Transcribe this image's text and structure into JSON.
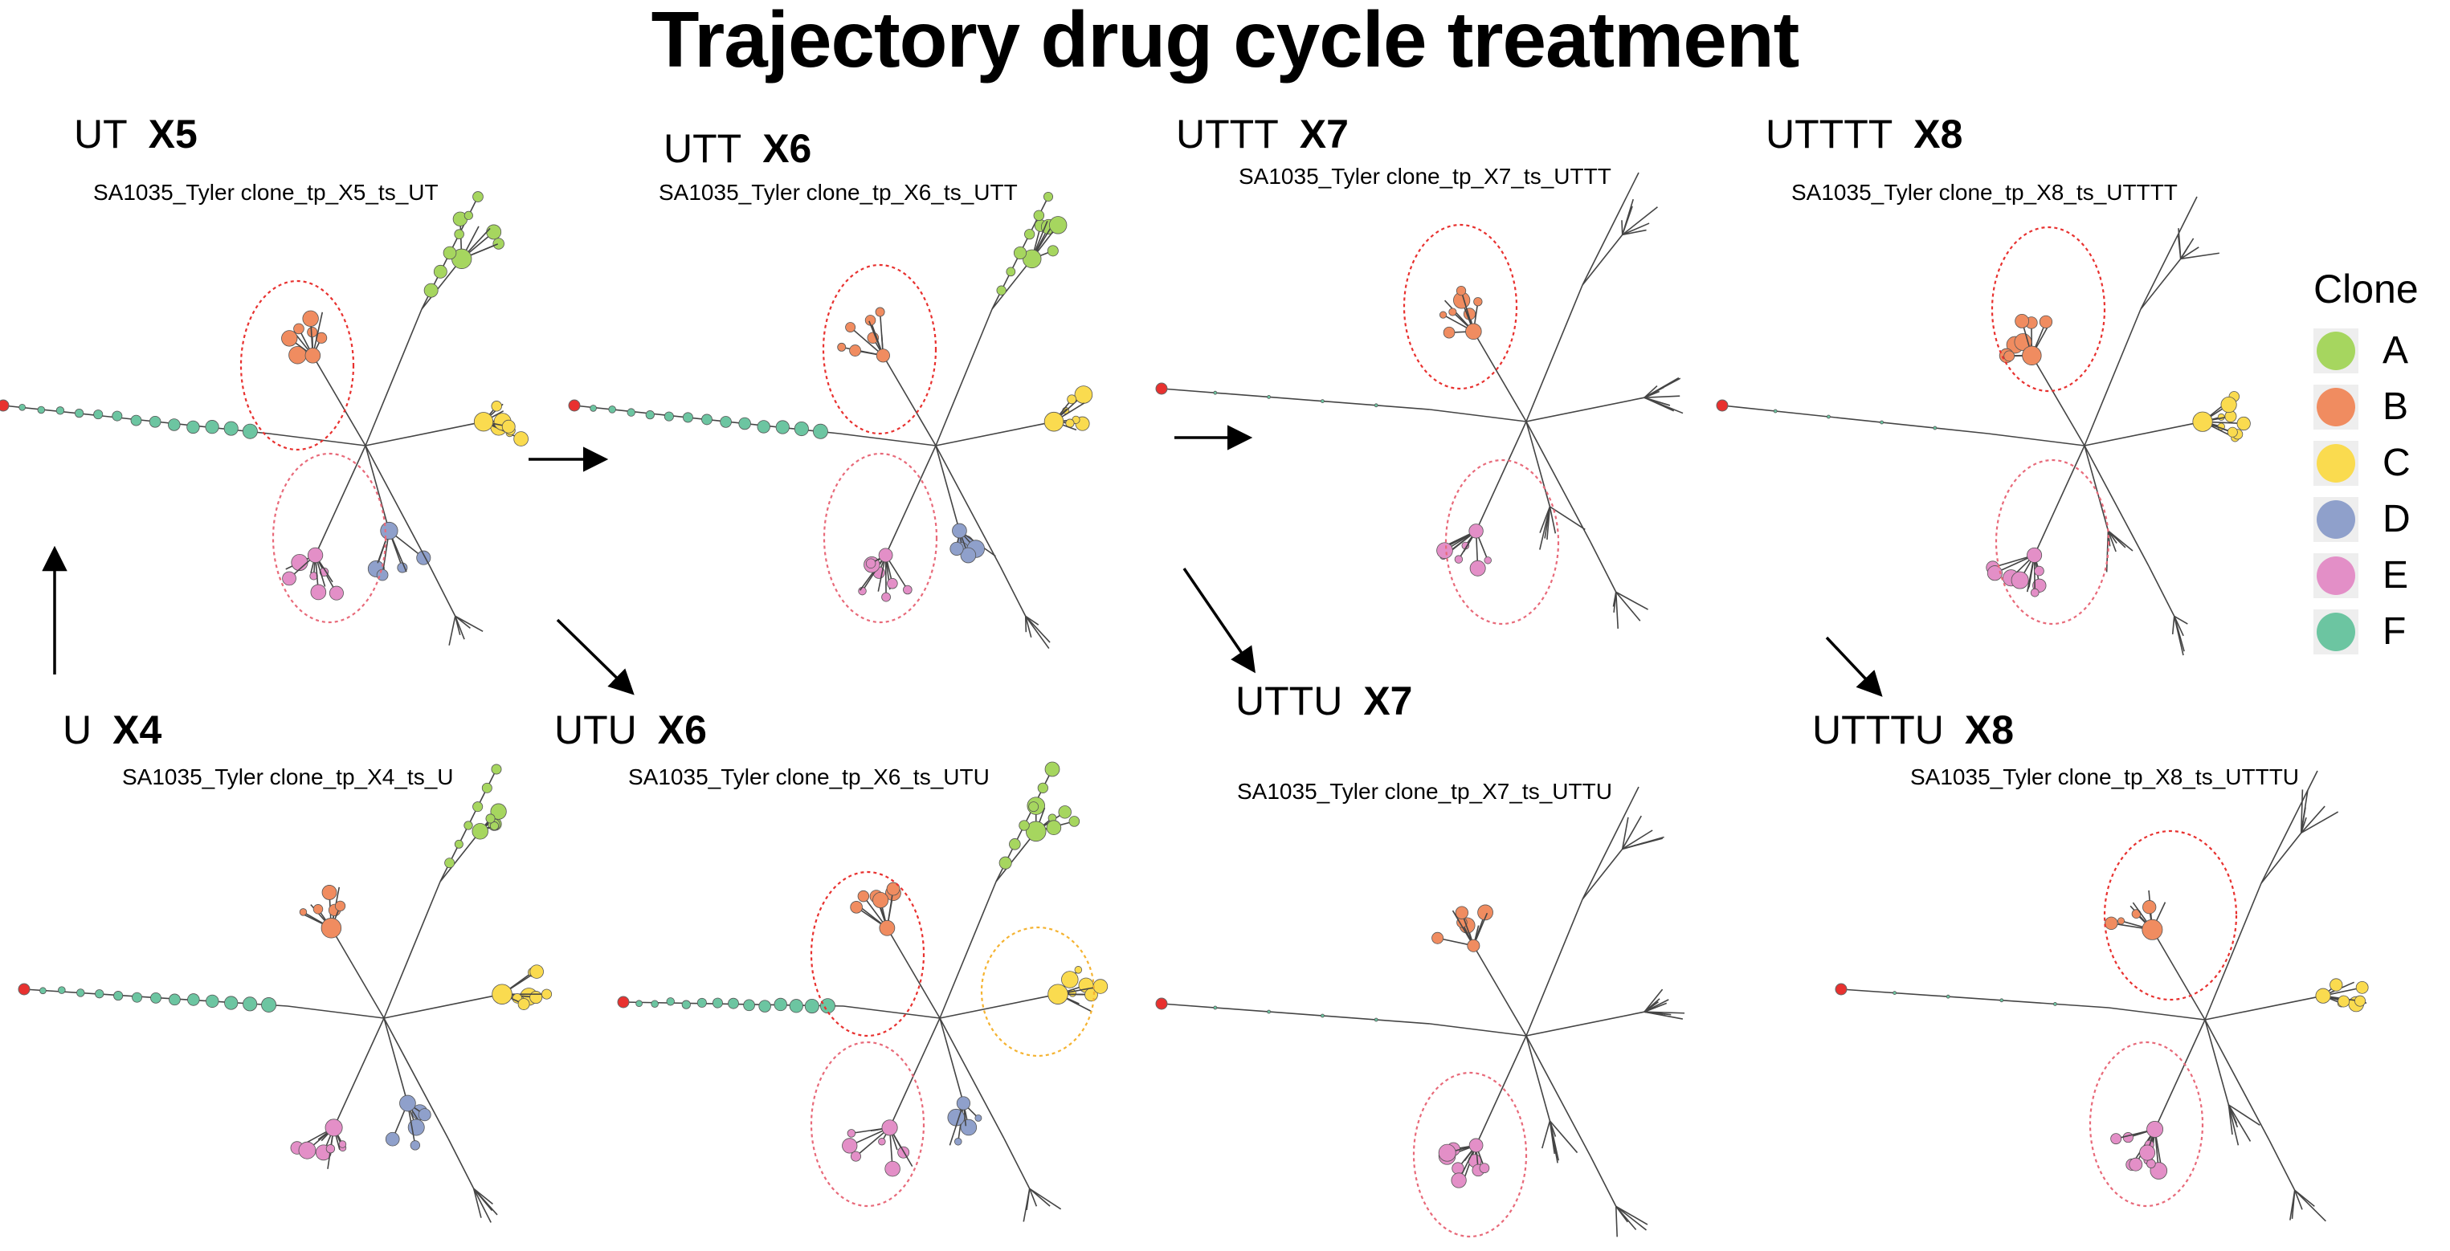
{
  "title": "Trajectory drug cycle treatment",
  "legend": {
    "title": "Clone",
    "items": [
      {
        "label": "A",
        "color": "#a6d65f"
      },
      {
        "label": "B",
        "color": "#f08c60"
      },
      {
        "label": "C",
        "color": "#fadb4f"
      },
      {
        "label": "D",
        "color": "#8fa0cb"
      },
      {
        "label": "E",
        "color": "#e38fc7"
      },
      {
        "label": "F",
        "color": "#6cc5a1"
      }
    ]
  },
  "panels": [
    {
      "label": "UT",
      "gen": "X5",
      "subtitle": "SA1035_Tyler clone_tp_X5_ts_UT"
    },
    {
      "label": "UTT",
      "gen": "X6",
      "subtitle": "SA1035_Tyler clone_tp_X6_ts_UTT"
    },
    {
      "label": "UTTT",
      "gen": "X7",
      "subtitle": "SA1035_Tyler clone_tp_X7_ts_UTTT"
    },
    {
      "label": "UTTTT",
      "gen": "X8",
      "subtitle": "SA1035_Tyler clone_tp_X8_ts_UTTTT"
    },
    {
      "label": "U",
      "gen": "X4",
      "subtitle": "SA1035_Tyler clone_tp_X4_ts_U"
    },
    {
      "label": "UTU",
      "gen": "X6",
      "subtitle": "SA1035_Tyler clone_tp_X6_ts_UTU"
    },
    {
      "label": "UTTU",
      "gen": "X7",
      "subtitle": "SA1035_Tyler clone_tp_X7_ts_UTTU"
    },
    {
      "label": "UTTTU",
      "gen": "X8",
      "subtitle": "SA1035_Tyler clone_tp_X8_ts_UTTTU"
    }
  ],
  "colors": {
    "root": "#e8312f",
    "edge": "#444444",
    "circle_red": "#e8312f",
    "circle_pink": "#e86a7a",
    "circle_orange": "#f5b331",
    "arrow": "#000000"
  }
}
